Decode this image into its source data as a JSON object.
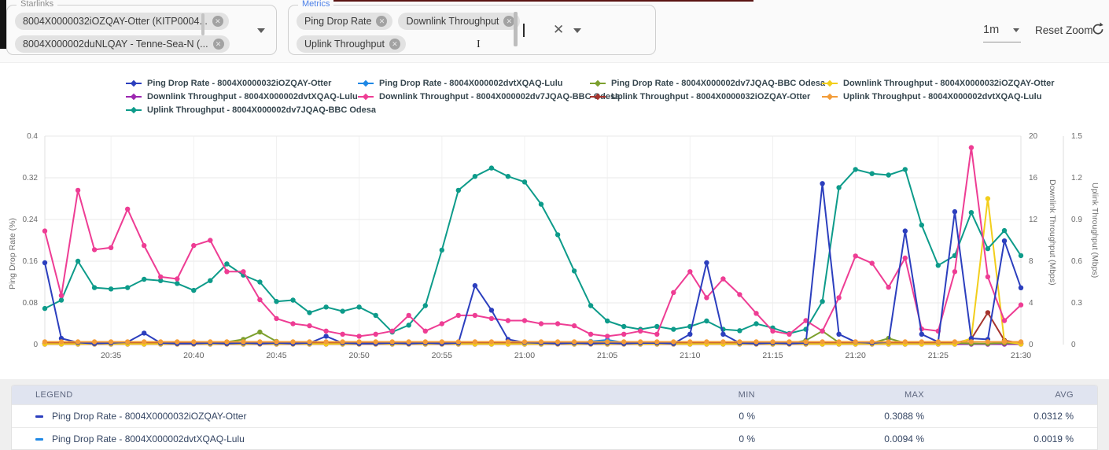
{
  "topbar": {
    "starlinks_field": {
      "label": "Starlinks",
      "chips": [
        "8004X0000032iOZQAY-Otter (KITP0004...",
        "8004X000002duNLQAY - Tenne-Sea-N (..."
      ]
    },
    "metrics_field": {
      "label": "Metrics",
      "chips": [
        "Ping Drop Rate",
        "Downlink Throughput",
        "Uplink Throughput"
      ]
    },
    "interval_select": "1m",
    "reset_zoom_label": "Reset Zoom"
  },
  "chart_data": {
    "type": "line",
    "x_tick_labels": [
      "20:35",
      "20:40",
      "20:45",
      "20:50",
      "20:55",
      "21:00",
      "21:05",
      "21:10",
      "21:15",
      "21:20",
      "21:25",
      "21:30"
    ],
    "x_minutes_per_point": 1,
    "grid": "on",
    "legend_position": "top",
    "axes": {
      "ping": {
        "title": "Ping Drop Rate (%)",
        "min": 0,
        "max": 0.4,
        "ticks": [
          "0",
          "0.08",
          "0.16",
          "0.24",
          "0.32",
          "0.4"
        ]
      },
      "downlink": {
        "title": "Downlink Throughput (Mbps)",
        "min": 0,
        "max": 20,
        "ticks": [
          "0",
          "4",
          "8",
          "12",
          "16",
          "20"
        ]
      },
      "uplink": {
        "title": "Uplink Throughput (Mbps)",
        "min": 0,
        "max": 1.5,
        "ticks": [
          "0",
          "0.3",
          "0.6",
          "0.9",
          "1.2",
          "1.5"
        ]
      }
    },
    "series": [
      {
        "id": "ping_otter",
        "label": "Ping Drop Rate - 8004X0000032iOZQAY-Otter",
        "color": "#2C3FBE",
        "axis": "ping",
        "values": [
          0.157,
          0.012,
          0.004,
          0.002,
          0.003,
          0.005,
          0.022,
          0.003,
          0.002,
          0.002,
          0.003,
          0.002,
          0.003,
          0.002,
          0.003,
          0.002,
          0.003,
          0.016,
          0.003,
          0.002,
          0.002,
          0.003,
          0.002,
          0.003,
          0.002,
          0.003,
          0.113,
          0.066,
          0.01,
          0.004,
          0.003,
          0.002,
          0.003,
          0.002,
          0.003,
          0.002,
          0.003,
          0.003,
          0.002,
          0.02,
          0.157,
          0.02,
          0.003,
          0.002,
          0.003,
          0.002,
          0.003,
          0.309,
          0.02,
          0.005,
          0.003,
          0.005,
          0.218,
          0.02,
          0.005,
          0.255,
          0.012,
          0.01,
          0.199,
          0.109
        ]
      },
      {
        "id": "ping_lulu",
        "label": "Ping Drop Rate - 8004X000002dvtXQAQ-Lulu",
        "color": "#1E88E5",
        "axis": "ping",
        "values": [
          0.002,
          0.001,
          0.002,
          0.001,
          0.001,
          0.002,
          0.001,
          0.001,
          0.002,
          0.001,
          0.001,
          0.002,
          0.001,
          0.001,
          0.001,
          0.002,
          0.001,
          0.001,
          0.002,
          0.001,
          0.001,
          0.001,
          0.002,
          0.001,
          0.001,
          0.002,
          0.001,
          0.001,
          0.002,
          0.001,
          0.001,
          0.002,
          0.003,
          0.006,
          0.009,
          0.004,
          0.001,
          0.002,
          0.001,
          0.001,
          0.002,
          0.001,
          0.001,
          0.002,
          0.001,
          0.005,
          0.002,
          0.001,
          0.001,
          0.002,
          0.004,
          0.001,
          0.001,
          0.002,
          0.001,
          0.001,
          0.002,
          0.001,
          0.001,
          0.001
        ]
      },
      {
        "id": "ping_bbc",
        "label": "Ping Drop Rate - 8004X000002dv7JQAQ-BBC Odesa",
        "color": "#7CA02E",
        "axis": "ping",
        "values": [
          0.002,
          0.002,
          0.003,
          0.002,
          0.002,
          0.003,
          0.002,
          0.002,
          0.003,
          0.002,
          0.002,
          0.005,
          0.01,
          0.024,
          0.006,
          0.002,
          0.003,
          0.002,
          0.002,
          0.003,
          0.002,
          0.002,
          0.003,
          0.002,
          0.002,
          0.003,
          0.002,
          0.002,
          0.003,
          0.002,
          0.002,
          0.003,
          0.002,
          0.002,
          0.003,
          0.002,
          0.002,
          0.003,
          0.002,
          0.002,
          0.003,
          0.002,
          0.002,
          0.003,
          0.002,
          0.002,
          0.008,
          0.026,
          0.004,
          0.002,
          0.003,
          0.012,
          0.003,
          0.002,
          0.002,
          0.003,
          0.002,
          0.002,
          0.003,
          0.002
        ]
      },
      {
        "id": "down_otter",
        "label": "Downlink Throughput - 8004X0000032iOZQAY-Otter",
        "color": "#F2CE1B",
        "axis": "downlink",
        "values": [
          0.05,
          0.05,
          0.05,
          0.05,
          0.05,
          0.05,
          0.05,
          0.05,
          0.05,
          0.05,
          0.05,
          0.05,
          0.05,
          0.05,
          0.05,
          0.05,
          0.05,
          0.05,
          0.05,
          0.05,
          0.05,
          0.05,
          0.05,
          0.05,
          0.05,
          0.05,
          0.05,
          0.05,
          0.05,
          0.05,
          0.05,
          0.05,
          0.05,
          0.05,
          0.05,
          0.05,
          0.05,
          0.05,
          0.05,
          0.05,
          0.05,
          0.05,
          0.05,
          0.05,
          0.05,
          0.05,
          0.05,
          0.05,
          0.05,
          0.05,
          0.05,
          0.05,
          0.05,
          0.05,
          0.05,
          0.05,
          0.6,
          14.0,
          0.3,
          0.05
        ]
      },
      {
        "id": "down_lulu",
        "label": "Downlink Throughput - 8004X000002dvtXQAQ-Lulu",
        "color": "#9C27B0",
        "axis": "downlink",
        "values": [
          0.04,
          0.04,
          0.04,
          0.04,
          0.04,
          0.04,
          0.04,
          0.04,
          0.04,
          0.04,
          0.04,
          0.04,
          0.04,
          0.04,
          0.04,
          0.04,
          0.04,
          0.04,
          0.04,
          0.04,
          0.04,
          0.04,
          0.04,
          0.04,
          0.04,
          0.04,
          0.04,
          0.04,
          0.04,
          0.04,
          0.04,
          0.04,
          0.04,
          0.04,
          0.04,
          0.04,
          0.04,
          0.04,
          0.04,
          0.04,
          0.04,
          0.04,
          0.04,
          0.04,
          0.04,
          0.04,
          0.04,
          0.04,
          0.04,
          0.04,
          0.04,
          0.04,
          0.04,
          0.04,
          0.04,
          0.04,
          0.04,
          0.04,
          0.04,
          0.04
        ]
      },
      {
        "id": "down_bbc",
        "label": "Downlink Throughput - 8004X000002dv7JQAQ-BBC Odesa",
        "color": "#EE3D94",
        "axis": "downlink",
        "values": [
          10.9,
          4.7,
          14.8,
          9.1,
          9.3,
          13.0,
          9.5,
          6.5,
          6.3,
          9.5,
          10.0,
          7.0,
          7.0,
          4.3,
          2.5,
          2.0,
          1.8,
          1.3,
          1.0,
          0.8,
          1.0,
          1.3,
          2.8,
          1.3,
          2.0,
          2.8,
          2.8,
          2.5,
          2.3,
          2.3,
          2.0,
          2.0,
          1.8,
          1.0,
          0.8,
          1.0,
          1.3,
          1.0,
          5.0,
          7.0,
          4.5,
          6.3,
          4.8,
          3.0,
          1.3,
          1.0,
          2.3,
          1.3,
          4.5,
          8.5,
          7.8,
          5.5,
          8.3,
          1.5,
          1.3,
          7.0,
          18.9,
          6.5,
          2.3,
          3.8
        ]
      },
      {
        "id": "up_otter",
        "label": "Uplink Throughput - 8004X0000032iOZQAY-Otter",
        "color": "#A5342D",
        "axis": "uplink",
        "values": [
          0.01,
          0.01,
          0.01,
          0.01,
          0.01,
          0.01,
          0.01,
          0.01,
          0.01,
          0.01,
          0.01,
          0.01,
          0.01,
          0.01,
          0.01,
          0.01,
          0.01,
          0.01,
          0.01,
          0.01,
          0.01,
          0.01,
          0.01,
          0.01,
          0.01,
          0.01,
          0.01,
          0.01,
          0.01,
          0.01,
          0.01,
          0.01,
          0.01,
          0.01,
          0.01,
          0.01,
          0.01,
          0.01,
          0.01,
          0.01,
          0.01,
          0.01,
          0.01,
          0.01,
          0.01,
          0.01,
          0.01,
          0.01,
          0.01,
          0.01,
          0.01,
          0.01,
          0.01,
          0.01,
          0.01,
          0.01,
          0.04,
          0.23,
          0.03,
          0.01
        ]
      },
      {
        "id": "up_lulu",
        "label": "Uplink Throughput - 8004X000002dvtXQAQ-Lulu",
        "color": "#F39C38",
        "axis": "uplink",
        "values": [
          0.02,
          0.02,
          0.02,
          0.02,
          0.02,
          0.02,
          0.02,
          0.02,
          0.02,
          0.02,
          0.02,
          0.02,
          0.02,
          0.02,
          0.02,
          0.02,
          0.02,
          0.02,
          0.02,
          0.02,
          0.02,
          0.02,
          0.02,
          0.02,
          0.02,
          0.02,
          0.02,
          0.02,
          0.02,
          0.02,
          0.02,
          0.02,
          0.02,
          0.02,
          0.02,
          0.02,
          0.02,
          0.02,
          0.02,
          0.02,
          0.02,
          0.02,
          0.02,
          0.02,
          0.02,
          0.02,
          0.02,
          0.02,
          0.02,
          0.02,
          0.02,
          0.02,
          0.02,
          0.02,
          0.02,
          0.02,
          0.02,
          0.02,
          0.02,
          0.02
        ]
      },
      {
        "id": "up_bbc",
        "label": "Uplink Throughput - 8004X000002dv7JQAQ-BBC Odesa",
        "color": "#0D9B8A",
        "axis": "uplink",
        "values": [
          0.26,
          0.32,
          0.6,
          0.41,
          0.4,
          0.41,
          0.47,
          0.46,
          0.44,
          0.39,
          0.46,
          0.58,
          0.5,
          0.45,
          0.31,
          0.32,
          0.23,
          0.27,
          0.24,
          0.27,
          0.21,
          0.09,
          0.14,
          0.28,
          0.68,
          1.11,
          1.21,
          1.27,
          1.21,
          1.17,
          1.01,
          0.79,
          0.53,
          0.28,
          0.17,
          0.13,
          0.11,
          0.13,
          0.11,
          0.13,
          0.17,
          0.11,
          0.1,
          0.15,
          0.12,
          0.08,
          0.11,
          0.31,
          1.13,
          1.26,
          1.23,
          1.22,
          1.26,
          0.86,
          0.57,
          0.64,
          0.95,
          0.69,
          0.82,
          0.64
        ]
      }
    ],
    "draw_order": [
      "ping_lulu",
      "down_lulu",
      "ping_bbc",
      "up_otter",
      "down_otter",
      "up_bbc",
      "down_bbc",
      "ping_otter",
      "up_lulu"
    ]
  },
  "summary_table": {
    "headers": [
      "LEGEND",
      "MIN",
      "MAX",
      "AVG"
    ],
    "rows": [
      {
        "label": "Ping Drop Rate - 8004X0000032iOZQAY-Otter",
        "color": "#2C3FBE",
        "min": "0 %",
        "max": "0.3088 %",
        "avg": "0.0312 %"
      },
      {
        "label": "Ping Drop Rate - 8004X000002dvtXQAQ-Lulu",
        "color": "#1E88E5",
        "min": "0 %",
        "max": "0.0094 %",
        "avg": "0.0019 %"
      }
    ]
  }
}
